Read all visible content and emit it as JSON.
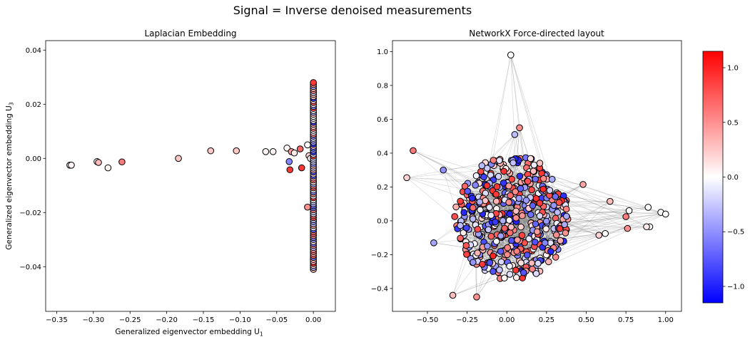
{
  "figure": {
    "suptitle": "Signal = Inverse denoised measurements"
  },
  "colormap": {
    "name": "bwr",
    "min_color": "#0000ff",
    "mid_color": "#ffffff",
    "max_color": "#ff0000",
    "vmin": -1.15,
    "vmax": 1.15
  },
  "chart_data": [
    {
      "type": "scatter",
      "title": "Laplacian Embedding",
      "xlabel": "Generalized eigenvector embedding U",
      "xlabel_sub": "1",
      "ylabel": "Generalized eigenvector embedding U",
      "ylabel_sub": "3",
      "xlim": [
        -0.365,
        0.03
      ],
      "ylim": [
        -0.0565,
        0.0435
      ],
      "xticks": [
        -0.35,
        -0.3,
        -0.25,
        -0.2,
        -0.15,
        -0.1,
        -0.05,
        0.0
      ],
      "xtick_labels": [
        "−0.35",
        "−0.30",
        "−0.25",
        "−0.20",
        "−0.15",
        "−0.10",
        "−0.05",
        "0.00"
      ],
      "yticks": [
        -0.04,
        -0.02,
        0.0,
        0.02,
        0.04
      ],
      "ytick_labels": [
        "−0.04",
        "−0.02",
        "0.00",
        "0.02",
        "0.04"
      ],
      "grid": false,
      "points": [
        {
          "x": -0.332,
          "y": -0.0025,
          "c": 0.0
        },
        {
          "x": -0.33,
          "y": -0.0025,
          "c": 0.05
        },
        {
          "x": -0.295,
          "y": -0.0012,
          "c": 0.05
        },
        {
          "x": -0.293,
          "y": -0.0015,
          "c": 0.3
        },
        {
          "x": -0.28,
          "y": -0.0035,
          "c": 0.05
        },
        {
          "x": -0.261,
          "y": -0.0013,
          "c": 0.6
        },
        {
          "x": -0.184,
          "y": 0.0,
          "c": 0.25
        },
        {
          "x": -0.14,
          "y": 0.0028,
          "c": 0.25
        },
        {
          "x": -0.105,
          "y": 0.0028,
          "c": 0.25
        },
        {
          "x": -0.065,
          "y": 0.0025,
          "c": 0.05
        },
        {
          "x": -0.055,
          "y": 0.0025,
          "c": 0.05
        },
        {
          "x": -0.036,
          "y": 0.0038,
          "c": 0.05
        },
        {
          "x": -0.033,
          "y": -0.0012,
          "c": -0.55
        },
        {
          "x": -0.032,
          "y": -0.0042,
          "c": 0.9
        },
        {
          "x": -0.03,
          "y": 0.0025,
          "c": 0.45
        },
        {
          "x": -0.026,
          "y": 0.002,
          "c": 0.1
        },
        {
          "x": -0.018,
          "y": 0.0035,
          "c": 0.7
        },
        {
          "x": -0.016,
          "y": -0.0035,
          "c": 0.9
        },
        {
          "x": -0.008,
          "y": 0.005,
          "c": 0.0
        },
        {
          "x": -0.006,
          "y": 0.001,
          "c": 0.2
        },
        {
          "x": -0.008,
          "y": -0.018,
          "c": 0.5
        },
        {
          "x": -0.004,
          "y": 0.0,
          "c": 0.05
        }
      ],
      "column_x": 0.0,
      "column_range": [
        -0.041,
        0.028
      ]
    },
    {
      "type": "scatter",
      "title": "NetworkX Force-directed layout",
      "xlim": [
        -0.72,
        1.1
      ],
      "ylim": [
        -0.535,
        1.065
      ],
      "xticks": [
        -0.5,
        -0.25,
        0.0,
        0.25,
        0.5,
        0.75,
        1.0
      ],
      "xtick_labels": [
        "−0.50",
        "−0.25",
        "0.00",
        "0.25",
        "0.50",
        "0.75",
        "1.00"
      ],
      "yticks": [
        -0.4,
        -0.2,
        0.0,
        0.2,
        0.4,
        0.6,
        0.8,
        1.0
      ],
      "ytick_labels": [
        "−0.4",
        "−0.2",
        "0.0",
        "0.2",
        "0.4",
        "0.6",
        "0.8",
        "1.0"
      ],
      "grid": false,
      "edge_color": "#808080",
      "outliers": [
        {
          "x": 0.025,
          "y": 0.98,
          "c": 0.0
        },
        {
          "x": -0.59,
          "y": 0.415,
          "c": 0.6
        },
        {
          "x": -0.63,
          "y": 0.255,
          "c": 0.2
        },
        {
          "x": -0.46,
          "y": -0.13,
          "c": -0.4
        },
        {
          "x": -0.4,
          "y": 0.3,
          "c": -0.5
        },
        {
          "x": -0.34,
          "y": -0.44,
          "c": 0.3
        },
        {
          "x": -0.19,
          "y": -0.45,
          "c": 0.5
        },
        {
          "x": 0.89,
          "y": 0.08,
          "c": 0.0
        },
        {
          "x": 0.97,
          "y": 0.05,
          "c": 0.0
        },
        {
          "x": 1.0,
          "y": 0.04,
          "c": 0.0
        },
        {
          "x": 0.9,
          "y": -0.035,
          "c": 0.0
        },
        {
          "x": 0.88,
          "y": -0.035,
          "c": 0.1
        },
        {
          "x": 0.77,
          "y": 0.06,
          "c": 0.0
        },
        {
          "x": 0.75,
          "y": 0.025,
          "c": 0.6
        },
        {
          "x": 0.76,
          "y": -0.045,
          "c": 0.5
        },
        {
          "x": 0.65,
          "y": 0.115,
          "c": 0.3
        },
        {
          "x": 0.62,
          "y": -0.075,
          "c": 0.0
        },
        {
          "x": 0.58,
          "y": -0.085,
          "c": 0.2
        },
        {
          "x": 0.48,
          "y": 0.215,
          "c": 0.4
        },
        {
          "x": 0.08,
          "y": 0.55,
          "c": 0.5
        },
        {
          "x": 0.05,
          "y": 0.51,
          "c": -0.3
        }
      ],
      "cluster": {
        "count": 520,
        "center": [
          0.03,
          0.02
        ],
        "extent": [
          0.36,
          0.37
        ],
        "color_range": [
          -1.0,
          1.0
        ]
      }
    }
  ],
  "colorbar": {
    "ticks": [
      1.0,
      0.5,
      0.0,
      -0.5,
      -1.0
    ],
    "tick_labels": [
      "1.0",
      "0.5",
      "0.0",
      "−0.5",
      "−1.0"
    ]
  }
}
